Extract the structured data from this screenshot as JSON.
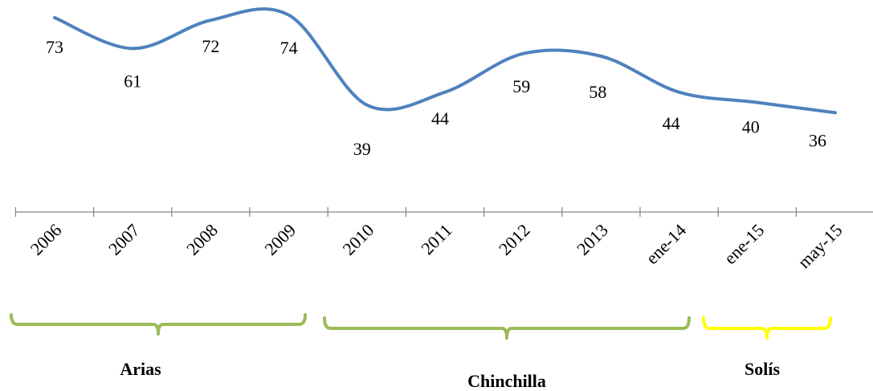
{
  "chart_data": {
    "type": "line",
    "title": "",
    "xlabel": "",
    "ylabel": "",
    "categories": [
      "2006",
      "2007",
      "2008",
      "2009",
      "2010",
      "2011",
      "2012",
      "2013",
      "ene-14",
      "ene-15",
      "may-15"
    ],
    "series": [
      {
        "values": [
          73,
          61,
          72,
          74,
          39,
          44,
          59,
          58,
          44,
          40,
          36
        ],
        "color": "#4f81bd",
        "smooth": true
      }
    ],
    "data_labels": true,
    "grid": false,
    "legend": "none",
    "periods": [
      {
        "name": "Arias",
        "start_index": 0,
        "end_index": 3,
        "color": "#9bbb59"
      },
      {
        "name": "Chinchilla",
        "start_index": 4,
        "end_index": 8,
        "color": "#9bbb59"
      },
      {
        "name": "Solís",
        "start_index": 9,
        "end_index": 10,
        "color": "#ffff00"
      }
    ]
  }
}
